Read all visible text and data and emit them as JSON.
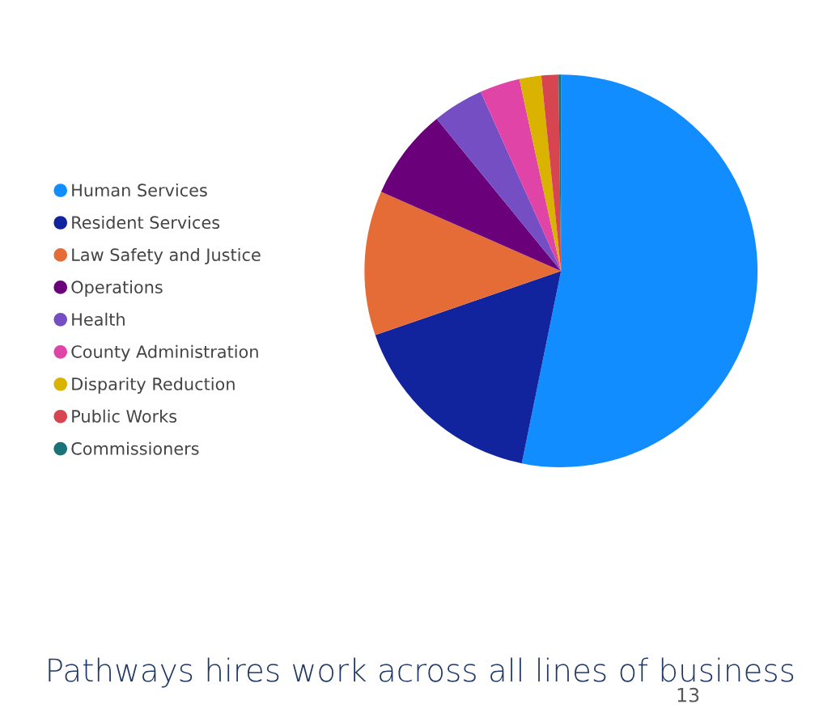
{
  "chart_data": {
    "type": "pie",
    "title": "Pathways hires work across all lines of business",
    "categories": [
      "Human Services",
      "Resident Services",
      "Law Safety and Justice",
      "Operations",
      "Health",
      "County Administration",
      "Disparity Reduction",
      "Public Works",
      "Commissioners"
    ],
    "values": [
      53.2,
      16.5,
      11.9,
      7.5,
      4.2,
      3.3,
      1.8,
      1.4,
      0.2
    ],
    "colors": [
      "#118dff",
      "#12239e",
      "#e66c37",
      "#6b007b",
      "#744ec2",
      "#e044a7",
      "#d9b300",
      "#d64550",
      "#197278"
    ],
    "legend": "left",
    "annotations": [
      "13"
    ]
  }
}
